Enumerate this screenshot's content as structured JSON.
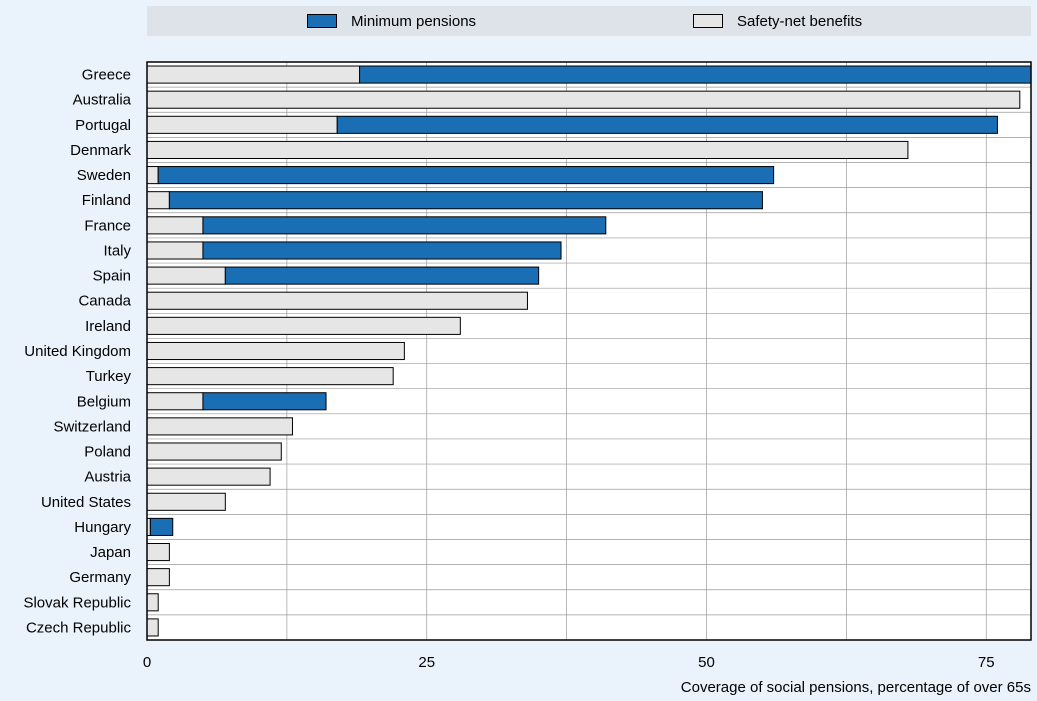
{
  "chart_data": {
    "type": "bar",
    "orientation": "horizontal",
    "stacked": true,
    "categories": [
      "Greece",
      "Australia",
      "Portugal",
      "Denmark",
      "Sweden",
      "Finland",
      "France",
      "Italy",
      "Spain",
      "Canada",
      "Ireland",
      "United Kingdom",
      "Turkey",
      "Belgium",
      "Switzerland",
      "Poland",
      "Austria",
      "United States",
      "Hungary",
      "Japan",
      "Germany",
      "Slovak Republic",
      "Czech Republic"
    ],
    "series": [
      {
        "name": "Safety-net benefits",
        "color": "#e6e6e6",
        "values": [
          19,
          78,
          17,
          68,
          1,
          2,
          5,
          5,
          7,
          34,
          28,
          23,
          22,
          5,
          13,
          12,
          11,
          7,
          0.3,
          2,
          2,
          1,
          1
        ]
      },
      {
        "name": "Minimum pensions",
        "color": "#1a6fb4",
        "values": [
          60,
          0,
          59,
          0,
          55,
          53,
          36,
          32,
          28,
          0,
          0,
          0,
          0,
          11,
          0,
          0,
          0,
          0,
          2,
          0,
          0,
          0,
          0
        ]
      }
    ],
    "xlabel": "Coverage of social pensions, percentage of over 65s",
    "ylabel": "",
    "xlim": [
      0,
      79
    ],
    "xticks": [
      0,
      25,
      50,
      75
    ],
    "grid": true,
    "legend_position": "top",
    "legend_order": [
      "Minimum pensions",
      "Safety-net benefits"
    ]
  },
  "colors": {
    "background": "#eaf3fc",
    "plot_background": "#ffffff",
    "legend_background": "#dde3e9",
    "grid": "#9a9a9a"
  }
}
